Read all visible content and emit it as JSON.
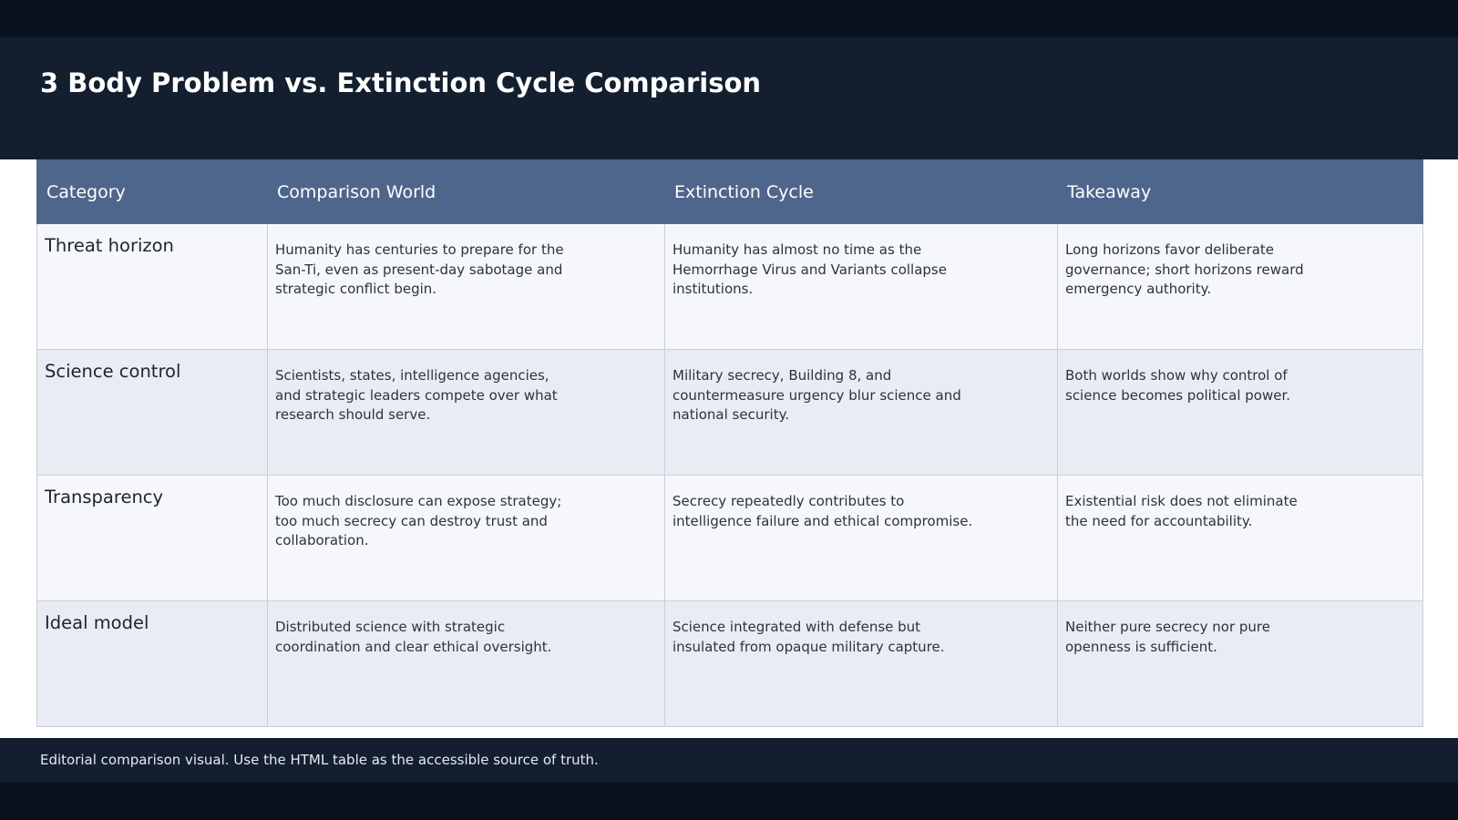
{
  "title": "3 Body Problem vs. Extinction Cycle Comparison",
  "table": {
    "headers": [
      "Category",
      "Comparison World",
      "Extinction Cycle",
      "Takeaway"
    ],
    "rows": [
      {
        "category": "Threat horizon",
        "comparison_world": "Humanity has centuries to prepare for the San-Ti, even as present-day sabotage and strategic conflict begin.",
        "extinction_cycle": "Humanity has almost no time as the Hemorrhage Virus and Variants collapse institutions.",
        "takeaway": "Long horizons favor deliberate governance; short horizons reward emergency authority."
      },
      {
        "category": "Science control",
        "comparison_world": "Scientists, states, intelligence agencies, and strategic leaders compete over what research should serve.",
        "extinction_cycle": "Military secrecy, Building 8, and countermeasure urgency blur science and national security.",
        "takeaway": "Both worlds show why control of science becomes political power."
      },
      {
        "category": "Transparency",
        "comparison_world": "Too much disclosure can expose strategy; too much secrecy can destroy trust and collaboration.",
        "extinction_cycle": "Secrecy repeatedly contributes to intelligence failure and ethical compromise.",
        "takeaway": "Existential risk does not eliminate the need for accountability."
      },
      {
        "category": "Ideal model",
        "comparison_world": "Distributed science with strategic coordination and clear ethical oversight.",
        "extinction_cycle": "Science integrated with defense but insulated from opaque military capture.",
        "takeaway": "Neither pure secrecy nor pure openness is sufficient."
      }
    ]
  },
  "footer": {
    "note": "Editorial comparison visual. Use the HTML table as the accessible source of truth."
  },
  "colors": {
    "page_dark": "#09111d",
    "header_bg": "#131e2f",
    "table_header_bg": "#4f668c",
    "row_light": "#f5f7fa",
    "row_alt": "#e9ecf3",
    "border": "#c9cfd9"
  }
}
